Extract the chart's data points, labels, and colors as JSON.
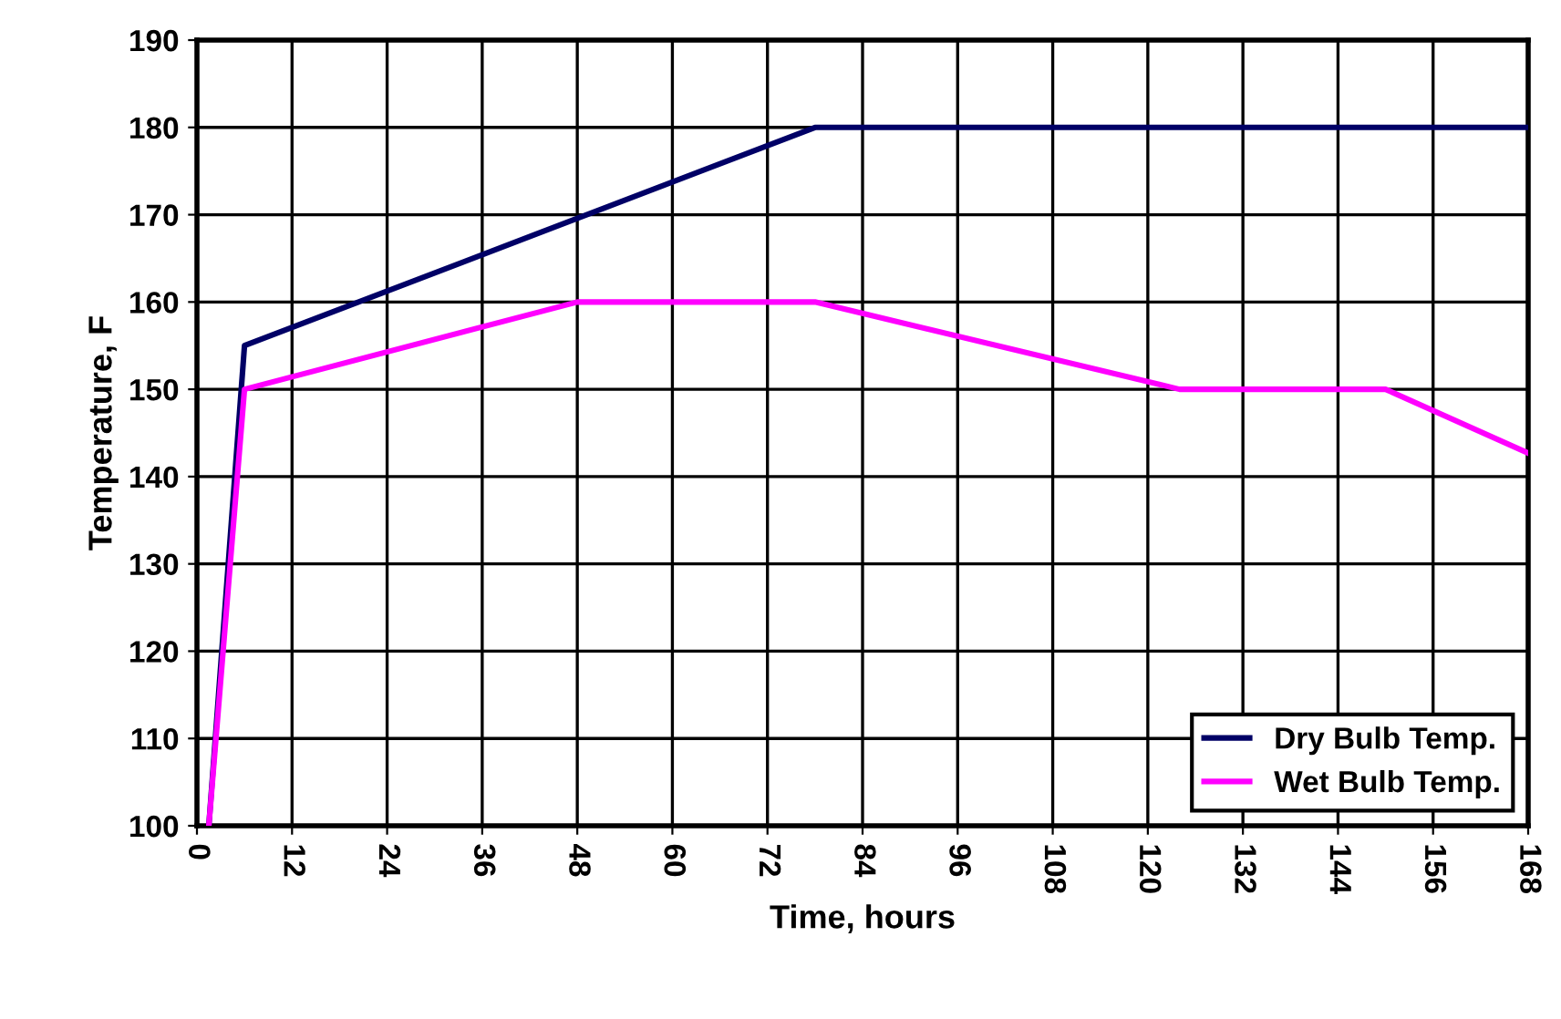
{
  "chart_data": {
    "type": "line",
    "xlabel": "Time, hours",
    "ylabel": "Temperature, F",
    "xlim": [
      0,
      168
    ],
    "ylim": [
      100,
      190
    ],
    "xticks": [
      0,
      12,
      24,
      36,
      48,
      60,
      72,
      84,
      96,
      108,
      120,
      132,
      144,
      156,
      168
    ],
    "yticks": [
      100,
      110,
      120,
      130,
      140,
      150,
      160,
      170,
      180,
      190
    ],
    "grid": true,
    "legend": "bottom right",
    "marker": "none",
    "line_style": "solid",
    "series": [
      {
        "name": "Dry Bulb Temp.",
        "color": "#000066",
        "x": [
          1.5,
          6,
          78,
          168
        ],
        "values": [
          100,
          155,
          180,
          180
        ]
      },
      {
        "name": "Wet Bulb Temp.",
        "color": "#ff00ff",
        "x": [
          1.5,
          6,
          48,
          78,
          124,
          150,
          168
        ],
        "values": [
          100,
          150,
          160,
          160,
          150,
          150,
          142.7
        ]
      }
    ]
  }
}
